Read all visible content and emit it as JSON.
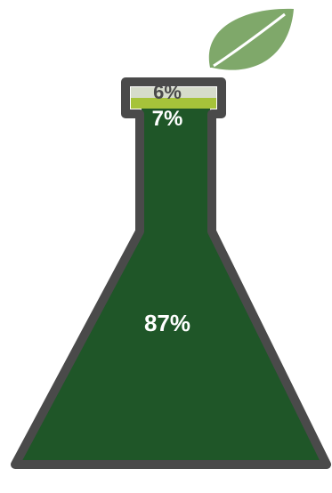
{
  "chart_data": {
    "type": "pie",
    "title": "",
    "segments": [
      {
        "label": "6%",
        "value": 6,
        "color": "#d6dccb"
      },
      {
        "label": "7%",
        "value": 7,
        "color": "#a6c33a"
      },
      {
        "label": "87%",
        "value": 87,
        "color": "#1f5628"
      }
    ]
  },
  "colors": {
    "outline": "#4a4a4a",
    "leaf": "#7fa86a",
    "label_dark": "#4a4a4a",
    "label_light": "#ffffff"
  },
  "icons": {
    "leaf": "leaf-icon"
  }
}
